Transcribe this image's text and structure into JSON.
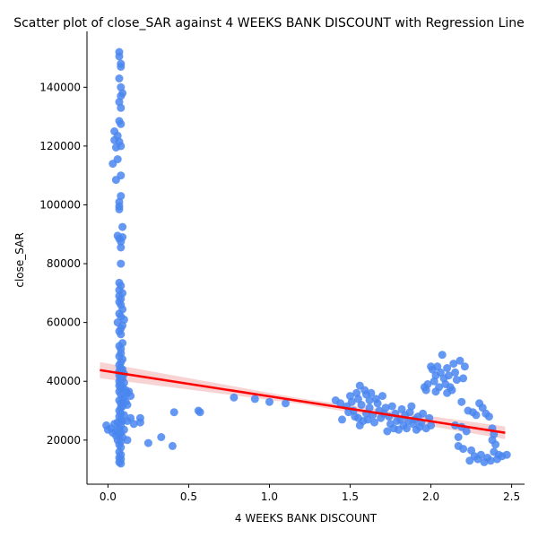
{
  "chart_data": {
    "type": "scatter",
    "title": "Scatter plot of close_SAR against 4 WEEKS BANK DISCOUNT with Regression Line",
    "xlabel": "4 WEEKS BANK DISCOUNT",
    "ylabel": "close_SAR",
    "xlim": [
      -0.13,
      2.58
    ],
    "ylim": [
      5000,
      159000
    ],
    "xticks": [
      0.0,
      0.5,
      1.0,
      1.5,
      2.0,
      2.5
    ],
    "xtick_labels": [
      "0.0",
      "0.5",
      "1.0",
      "1.5",
      "2.0",
      "2.5"
    ],
    "yticks": [
      20000,
      40000,
      60000,
      80000,
      100000,
      120000,
      140000
    ],
    "ytick_labels": [
      "20000",
      "40000",
      "60000",
      "80000",
      "100000",
      "120000",
      "140000"
    ],
    "grid": false,
    "point_color": "#4a86f0",
    "regression_color": "#ff0000",
    "ci_color": "#f4b6b6",
    "regression": {
      "x": [
        -0.05,
        2.46
      ],
      "y": [
        43800,
        22500
      ]
    },
    "points": [
      [
        0.07,
        152000
      ],
      [
        0.07,
        150500
      ],
      [
        0.08,
        148000
      ],
      [
        0.08,
        147000
      ],
      [
        0.07,
        143000
      ],
      [
        0.08,
        140000
      ],
      [
        0.09,
        138000
      ],
      [
        0.08,
        137000
      ],
      [
        0.07,
        135000
      ],
      [
        0.08,
        133000
      ],
      [
        0.07,
        128500
      ],
      [
        0.08,
        127500
      ],
      [
        0.04,
        125000
      ],
      [
        0.06,
        123500
      ],
      [
        0.04,
        122000
      ],
      [
        0.07,
        121500
      ],
      [
        0.08,
        120000
      ],
      [
        0.05,
        119500
      ],
      [
        0.06,
        115500
      ],
      [
        0.03,
        114000
      ],
      [
        0.08,
        110000
      ],
      [
        0.05,
        108500
      ],
      [
        0.08,
        103000
      ],
      [
        0.07,
        101000
      ],
      [
        0.07,
        99500
      ],
      [
        0.07,
        98500
      ],
      [
        0.09,
        92500
      ],
      [
        0.06,
        89500
      ],
      [
        0.09,
        89000
      ],
      [
        0.07,
        88500
      ],
      [
        0.08,
        87500
      ],
      [
        0.08,
        85500
      ],
      [
        0.08,
        80000
      ],
      [
        0.07,
        73500
      ],
      [
        0.08,
        72500
      ],
      [
        0.07,
        71000
      ],
      [
        0.09,
        70000
      ],
      [
        0.07,
        69000
      ],
      [
        0.08,
        68000
      ],
      [
        0.07,
        67000
      ],
      [
        0.08,
        66000
      ],
      [
        0.09,
        64500
      ],
      [
        0.07,
        63000
      ],
      [
        0.08,
        62000
      ],
      [
        0.1,
        61000
      ],
      [
        0.06,
        60000
      ],
      [
        0.09,
        59000
      ],
      [
        0.08,
        58000
      ],
      [
        0.07,
        57000
      ],
      [
        0.08,
        56000
      ],
      [
        0.09,
        53000
      ],
      [
        0.07,
        52000
      ],
      [
        0.08,
        51000
      ],
      [
        0.08,
        49500
      ],
      [
        0.07,
        48500
      ],
      [
        0.09,
        47500
      ],
      [
        0.08,
        46500
      ],
      [
        0.07,
        45500
      ],
      [
        0.08,
        44500
      ],
      [
        0.09,
        44000
      ],
      [
        0.07,
        43500
      ],
      [
        0.08,
        43000
      ],
      [
        0.1,
        42500
      ],
      [
        0.07,
        42000
      ],
      [
        0.08,
        41500
      ],
      [
        0.09,
        41000
      ],
      [
        0.08,
        40500
      ],
      [
        0.07,
        40000
      ],
      [
        0.1,
        39500
      ],
      [
        0.08,
        39000
      ],
      [
        0.07,
        38500
      ],
      [
        0.09,
        38000
      ],
      [
        0.08,
        37500
      ],
      [
        0.11,
        37000
      ],
      [
        0.07,
        36500
      ],
      [
        0.12,
        36000
      ],
      [
        0.08,
        35500
      ],
      [
        0.13,
        36500
      ],
      [
        0.14,
        35000
      ],
      [
        0.1,
        34500
      ],
      [
        0.09,
        34000
      ],
      [
        0.07,
        33500
      ],
      [
        0.11,
        33000
      ],
      [
        0.08,
        32500
      ],
      [
        0.12,
        32000
      ],
      [
        0.09,
        31500
      ],
      [
        0.08,
        31000
      ],
      [
        0.07,
        30000
      ],
      [
        0.08,
        29000
      ],
      [
        0.1,
        28500
      ],
      [
        0.07,
        28000
      ],
      [
        0.08,
        27000
      ],
      [
        0.09,
        26500
      ],
      [
        0.06,
        26000
      ],
      [
        0.08,
        25000
      ],
      [
        0.07,
        24000
      ],
      [
        0.1,
        23500
      ],
      [
        0.08,
        22500
      ],
      [
        0.07,
        21500
      ],
      [
        0.09,
        21000
      ],
      [
        0.06,
        20000
      ],
      [
        0.08,
        19500
      ],
      [
        0.07,
        18500
      ],
      [
        0.08,
        17500
      ],
      [
        0.07,
        16000
      ],
      [
        0.08,
        15000
      ],
      [
        0.07,
        14000
      ],
      [
        0.08,
        13500
      ],
      [
        0.07,
        12500
      ],
      [
        0.08,
        12000
      ],
      [
        -0.01,
        25000
      ],
      [
        0.02,
        24000
      ],
      [
        0.04,
        25500
      ],
      [
        0.05,
        23000
      ],
      [
        0.0,
        23500
      ],
      [
        0.03,
        22500
      ],
      [
        0.05,
        21500
      ],
      [
        0.12,
        20000
      ],
      [
        0.12,
        26500
      ],
      [
        0.14,
        27500
      ],
      [
        0.16,
        25500
      ],
      [
        0.2,
        26000
      ],
      [
        0.2,
        27500
      ],
      [
        0.25,
        19000
      ],
      [
        0.33,
        21000
      ],
      [
        0.4,
        18000
      ],
      [
        0.41,
        29500
      ],
      [
        0.56,
        30000
      ],
      [
        0.57,
        29500
      ],
      [
        0.78,
        34500
      ],
      [
        0.91,
        34000
      ],
      [
        1.0,
        33000
      ],
      [
        1.1,
        32500
      ],
      [
        1.41,
        33500
      ],
      [
        1.44,
        32500
      ],
      [
        1.45,
        27000
      ],
      [
        1.48,
        31500
      ],
      [
        1.49,
        29500
      ],
      [
        1.5,
        35000
      ],
      [
        1.51,
        33000
      ],
      [
        1.52,
        30000
      ],
      [
        1.53,
        28000
      ],
      [
        1.54,
        36000
      ],
      [
        1.55,
        34000
      ],
      [
        1.55,
        27500
      ],
      [
        1.56,
        25000
      ],
      [
        1.56,
        38500
      ],
      [
        1.57,
        32000
      ],
      [
        1.58,
        26500
      ],
      [
        1.59,
        37000
      ],
      [
        1.6,
        35500
      ],
      [
        1.6,
        29000
      ],
      [
        1.61,
        27000
      ],
      [
        1.62,
        33500
      ],
      [
        1.62,
        31000
      ],
      [
        1.63,
        36000
      ],
      [
        1.64,
        28500
      ],
      [
        1.65,
        26000
      ],
      [
        1.66,
        34000
      ],
      [
        1.67,
        32500
      ],
      [
        1.68,
        30000
      ],
      [
        1.69,
        27500
      ],
      [
        1.7,
        35000
      ],
      [
        1.71,
        29000
      ],
      [
        1.72,
        31000
      ],
      [
        1.73,
        23000
      ],
      [
        1.74,
        28000
      ],
      [
        1.75,
        25500
      ],
      [
        1.76,
        31500
      ],
      [
        1.77,
        24000
      ],
      [
        1.78,
        29000
      ],
      [
        1.79,
        26500
      ],
      [
        1.8,
        23500
      ],
      [
        1.81,
        27000
      ],
      [
        1.82,
        30500
      ],
      [
        1.83,
        25000
      ],
      [
        1.84,
        28500
      ],
      [
        1.85,
        24000
      ],
      [
        1.86,
        26500
      ],
      [
        1.87,
        29500
      ],
      [
        1.88,
        31500
      ],
      [
        1.89,
        25500
      ],
      [
        1.9,
        27000
      ],
      [
        1.91,
        23500
      ],
      [
        1.92,
        28000
      ],
      [
        1.93,
        24500
      ],
      [
        1.94,
        26000
      ],
      [
        1.95,
        29000
      ],
      [
        1.96,
        38000
      ],
      [
        1.97,
        37000
      ],
      [
        1.97,
        24000
      ],
      [
        1.98,
        39000
      ],
      [
        1.99,
        27500
      ],
      [
        2.0,
        45000
      ],
      [
        2.0,
        25000
      ],
      [
        2.01,
        44000
      ],
      [
        2.02,
        40000
      ],
      [
        2.03,
        42000
      ],
      [
        2.03,
        36500
      ],
      [
        2.04,
        45000
      ],
      [
        2.05,
        38000
      ],
      [
        2.06,
        43000
      ],
      [
        2.07,
        49000
      ],
      [
        2.08,
        41000
      ],
      [
        2.09,
        39000
      ],
      [
        2.1,
        44500
      ],
      [
        2.1,
        36000
      ],
      [
        2.11,
        42000
      ],
      [
        2.12,
        38000
      ],
      [
        2.13,
        37000
      ],
      [
        2.14,
        46000
      ],
      [
        2.15,
        43000
      ],
      [
        2.15,
        25000
      ],
      [
        2.16,
        40500
      ],
      [
        2.17,
        21000
      ],
      [
        2.17,
        18000
      ],
      [
        2.18,
        47000
      ],
      [
        2.19,
        33000
      ],
      [
        2.19,
        24500
      ],
      [
        2.2,
        41000
      ],
      [
        2.2,
        17000
      ],
      [
        2.21,
        45000
      ],
      [
        2.22,
        23000
      ],
      [
        2.23,
        30000
      ],
      [
        2.24,
        13000
      ],
      [
        2.25,
        16500
      ],
      [
        2.26,
        29500
      ],
      [
        2.27,
        14500
      ],
      [
        2.28,
        28500
      ],
      [
        2.29,
        13500
      ],
      [
        2.3,
        32500
      ],
      [
        2.31,
        15000
      ],
      [
        2.32,
        31000
      ],
      [
        2.33,
        12500
      ],
      [
        2.34,
        29000
      ],
      [
        2.35,
        14000
      ],
      [
        2.36,
        28000
      ],
      [
        2.37,
        13000
      ],
      [
        2.38,
        24000
      ],
      [
        2.38,
        20000
      ],
      [
        2.39,
        22000
      ],
      [
        2.39,
        16000
      ],
      [
        2.4,
        18500
      ],
      [
        2.41,
        13500
      ],
      [
        2.42,
        15000
      ],
      [
        2.44,
        14500
      ],
      [
        2.47,
        15000
      ]
    ]
  }
}
